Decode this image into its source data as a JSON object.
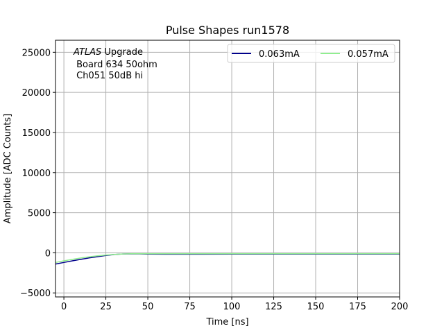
{
  "chart_data": {
    "type": "line",
    "title": "Pulse Shapes run1578",
    "xlabel": "Time [ns]",
    "ylabel": "Amplitude [ADC Counts]",
    "xlim": [
      -5,
      200
    ],
    "ylim": [
      -5500,
      26500
    ],
    "xticks": [
      0,
      25,
      50,
      75,
      100,
      125,
      150,
      175,
      200
    ],
    "yticks": [
      -5000,
      0,
      5000,
      10000,
      15000,
      20000,
      25000
    ],
    "grid": true,
    "legend_position": "upper right",
    "legend_columns": 2,
    "annotation": {
      "experiment": "ATLAS",
      "label": "Upgrade",
      "line2": " Board 634 50ohm",
      "line3": " Ch051 50dB hi"
    },
    "series": [
      {
        "name": "0.063mA",
        "color": "#00008b",
        "x": [
          -5,
          0,
          5,
          10,
          15,
          20,
          25,
          30,
          35,
          40,
          45,
          50,
          60,
          70,
          80,
          100,
          125,
          150,
          175,
          200
        ],
        "y": [
          -1400,
          -1200,
          -1000,
          -820,
          -640,
          -480,
          -340,
          -220,
          -150,
          -130,
          -140,
          -160,
          -170,
          -170,
          -170,
          -160,
          -160,
          -160,
          -160,
          -160
        ]
      },
      {
        "name": "0.057mA",
        "color": "#90ee90",
        "x": [
          -5,
          0,
          5,
          10,
          15,
          20,
          25,
          30,
          35,
          40,
          45,
          50,
          60,
          70,
          80,
          100,
          125,
          150,
          175,
          200
        ],
        "y": [
          -1200,
          -1000,
          -820,
          -650,
          -500,
          -380,
          -280,
          -200,
          -150,
          -120,
          -110,
          -110,
          -115,
          -120,
          -120,
          -120,
          -120,
          -120,
          -120,
          -120
        ]
      }
    ]
  }
}
